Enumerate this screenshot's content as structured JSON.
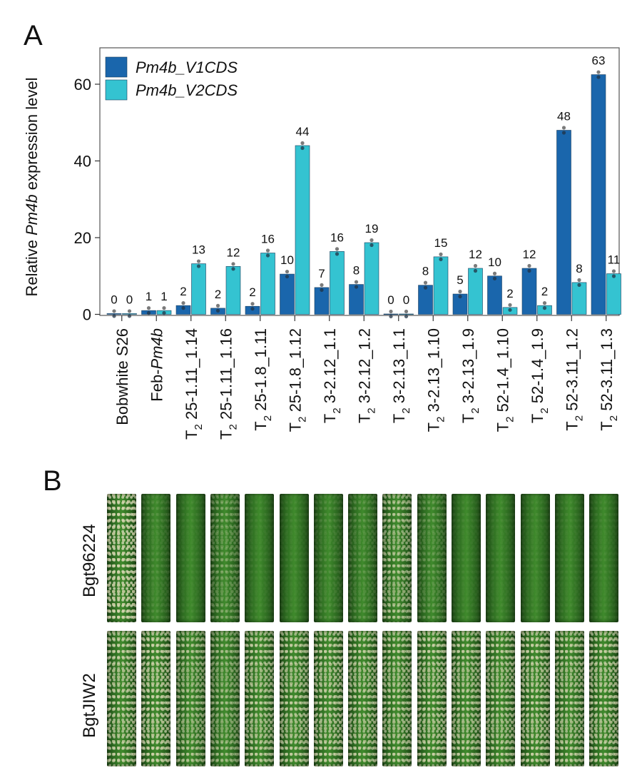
{
  "figure": {
    "panel_a_label": "A",
    "panel_b_label": "B"
  },
  "chart_data": {
    "type": "bar",
    "ylabel_prefix": "Relative ",
    "ylabel_italic": "Pm4b",
    "ylabel_suffix": " expression level",
    "ylim": [
      0,
      67
    ],
    "yticks": [
      0,
      20,
      40,
      60
    ],
    "legend_position": "top-left",
    "categories": [
      {
        "prefix": "",
        "sub": "",
        "main": "Bobwhite S26",
        "italic": ""
      },
      {
        "prefix": "",
        "sub": "",
        "main": "Feb-",
        "italic": "Pm4b"
      },
      {
        "prefix": "T",
        "sub": "2",
        "main": " 25-1.11_1.14",
        "italic": ""
      },
      {
        "prefix": "T",
        "sub": "2",
        "main": " 25-1.11_1.16",
        "italic": ""
      },
      {
        "prefix": "T",
        "sub": "2",
        "main": " 25-1.8_1.11",
        "italic": ""
      },
      {
        "prefix": "T",
        "sub": "2",
        "main": " 25-1.8_1.12",
        "italic": ""
      },
      {
        "prefix": "T",
        "sub": "2",
        "main": " 3-2.12_1.1",
        "italic": ""
      },
      {
        "prefix": "T",
        "sub": "2",
        "main": " 3-2.12_1.2",
        "italic": ""
      },
      {
        "prefix": "T",
        "sub": "2",
        "main": " 3-2.13_1.1",
        "italic": ""
      },
      {
        "prefix": "T",
        "sub": "2",
        "main": " 3-2.13_1.10",
        "italic": ""
      },
      {
        "prefix": "T",
        "sub": "2",
        "main": " 3-2.13_1.9",
        "italic": ""
      },
      {
        "prefix": "T",
        "sub": "2",
        "main": " 52-1.4_1.10",
        "italic": ""
      },
      {
        "prefix": "T",
        "sub": "2",
        "main": " 52-1.4_1.9",
        "italic": ""
      },
      {
        "prefix": "T",
        "sub": "2",
        "main": " 52-3.11_1.2",
        "italic": ""
      },
      {
        "prefix": "T",
        "sub": "2",
        "main": " 52-3.11_1.3",
        "italic": ""
      }
    ],
    "series": [
      {
        "name": "Pm4b_V1CDS",
        "color": "#1a66ac",
        "values": [
          0.2,
          1.0,
          2.3,
          1.6,
          2.1,
          10.5,
          7.0,
          7.8,
          0.1,
          7.6,
          5.3,
          10.0,
          12.0,
          48.0,
          62.5
        ],
        "labels": [
          "0",
          "1",
          "2",
          "2",
          "2",
          "10",
          "7",
          "8",
          "0",
          "8",
          "5",
          "10",
          "12",
          "48",
          "63"
        ]
      },
      {
        "name": "Pm4b_V2CDS",
        "color": "#34c3d1",
        "values": [
          0.2,
          1.0,
          13.2,
          12.5,
          16.0,
          44.0,
          16.4,
          18.7,
          0.1,
          15.0,
          12.0,
          1.8,
          2.3,
          8.3,
          10.6
        ],
        "labels": [
          "0",
          "1",
          "13",
          "12",
          "16",
          "44",
          "16",
          "19",
          "0",
          "15",
          "12",
          "2",
          "2",
          "8",
          "11"
        ]
      }
    ]
  },
  "photo_rows": [
    {
      "label": "Bgt96224",
      "infection": [
        0.9,
        0.1,
        0.05,
        0.3,
        0.05,
        0.05,
        0.1,
        0.15,
        0.6,
        0.2,
        0.05,
        0.05,
        0.05,
        0.05,
        0.05
      ]
    },
    {
      "label": "BgtJIW2",
      "infection": [
        0.75,
        0.8,
        0.6,
        0.5,
        0.7,
        0.7,
        0.75,
        0.7,
        0.7,
        0.75,
        0.7,
        0.7,
        0.75,
        0.7,
        0.75
      ]
    }
  ],
  "colors": {
    "leaf_green": "#2f6e22",
    "leaf_dark": "#1e4a16",
    "powdery": "#d9d6b0",
    "axis": "#333333"
  }
}
